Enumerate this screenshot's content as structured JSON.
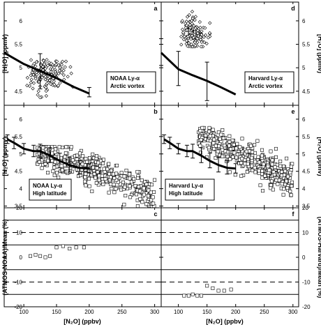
{
  "chart_data": {
    "type": "scatter",
    "shared_x": {
      "label": "[N₂O] (ppbv)",
      "xlim": [
        70,
        310
      ],
      "ticks": [
        100,
        150,
        200,
        250,
        300
      ]
    },
    "panels": [
      {
        "id": "a",
        "label": "a",
        "annotation": [
          "NOAA Ly-α",
          "Arctic vortex"
        ],
        "ylabel": "[H₂O] (ppmv)",
        "ylabel_side": "left",
        "ylim": [
          4.2,
          6.4
        ],
        "yticks": [
          4.5,
          5.0,
          5.5,
          6.0
        ],
        "marker": "diamond",
        "scatter_clusters": [
          {
            "x_range": [
              105,
              175
            ],
            "y_range": [
              4.35,
              5.2
            ],
            "center": [
              135,
              4.85
            ],
            "n": 160
          }
        ],
        "mean_line": {
          "x": [
            70,
            100,
            125,
            150,
            175,
            200
          ],
          "y": [
            5.32,
            5.08,
            4.93,
            4.78,
            4.6,
            4.45
          ],
          "err_x": [
            70,
            125,
            200
          ],
          "err_y": [
            5.32,
            4.93,
            4.45
          ],
          "err_lo": [
            5.05,
            4.55,
            4.38
          ],
          "err_hi": [
            5.62,
            5.3,
            4.58
          ]
        }
      },
      {
        "id": "d",
        "label": "d",
        "annotation": [
          "Harvard Ly-α",
          "Arctic vortex"
        ],
        "ylabel": "[H₂O] (ppmv)",
        "ylabel_side": "right",
        "ylim": [
          4.2,
          6.4
        ],
        "yticks": [
          4.5,
          5.0,
          5.5,
          6.0
        ],
        "marker": "diamond",
        "scatter_clusters": [
          {
            "x_range": [
              105,
              155
            ],
            "y_range": [
              5.45,
              6.2
            ],
            "center": [
              128,
              5.75
            ],
            "n": 160
          }
        ],
        "mean_line": {
          "x": [
            70,
            100,
            125,
            150,
            175,
            200
          ],
          "y": [
            5.32,
            4.97,
            4.84,
            4.72,
            4.58,
            4.43
          ],
          "err_x": [
            70,
            100,
            150
          ],
          "err_y": [
            5.32,
            4.97,
            4.72
          ],
          "err_lo": [
            5.05,
            4.62,
            4.3
          ],
          "err_hi": [
            5.62,
            5.35,
            5.12
          ]
        }
      },
      {
        "id": "b",
        "label": "b",
        "annotation": [
          "NOAA Ly-α",
          "High latitude"
        ],
        "ylabel": "[H₂O] (ppmv)",
        "ylabel_side": "left",
        "ylim": [
          3.45,
          6.4
        ],
        "yticks": [
          3.5,
          4.0,
          4.5,
          5.0,
          5.5,
          6.0
        ],
        "marker": "square",
        "scatter_clusters": [
          {
            "x_range": [
              120,
              300
            ],
            "y_range": [
              3.5,
              5.2
            ],
            "trend": [
              [
                120,
                5.0
              ],
              [
                200,
                4.6
              ],
              [
                300,
                3.85
              ]
            ],
            "n": 420
          }
        ],
        "mean_line": {
          "x": [
            75,
            85,
            100,
            115,
            125,
            140,
            155,
            170,
            185,
            200
          ],
          "y": [
            5.42,
            5.32,
            5.15,
            5.08,
            5.08,
            4.95,
            4.8,
            4.68,
            4.6,
            4.58
          ],
          "err_x": [
            75,
            85,
            100,
            115,
            125,
            140,
            155,
            170,
            185,
            200
          ],
          "err_y": [
            5.42,
            5.32,
            5.15,
            5.08,
            5.08,
            4.95,
            4.8,
            4.68,
            4.6,
            4.58
          ],
          "err_lo": [
            5.3,
            5.15,
            5.0,
            4.92,
            4.88,
            4.75,
            4.6,
            4.48,
            4.42,
            4.45
          ],
          "err_hi": [
            5.55,
            5.48,
            5.3,
            5.25,
            5.28,
            5.18,
            5.02,
            4.9,
            4.8,
            4.72
          ]
        }
      },
      {
        "id": "e",
        "label": "e",
        "annotation": [
          "Harvard Ly-α",
          "High latitude"
        ],
        "ylabel": "[H₂O] (ppmv)",
        "ylabel_side": "right",
        "ylim": [
          3.45,
          6.4
        ],
        "yticks": [
          3.5,
          4.0,
          4.5,
          5.0,
          5.5,
          6.0
        ],
        "marker": "square",
        "scatter_clusters": [
          {
            "x_range": [
              135,
              300
            ],
            "y_range": [
              3.5,
              5.75
            ],
            "trend": [
              [
                135,
                5.5
              ],
              [
                200,
                5.05
              ],
              [
                300,
                4.2
              ]
            ],
            "n": 420
          }
        ],
        "mean_line": {
          "x": [
            75,
            85,
            100,
            115,
            125,
            140,
            155,
            170,
            185,
            200
          ],
          "y": [
            5.42,
            5.32,
            5.15,
            5.08,
            5.08,
            4.95,
            4.8,
            4.68,
            4.6,
            4.58
          ],
          "err_x": [
            75,
            85,
            100,
            115,
            125,
            140,
            155,
            170,
            185,
            200
          ],
          "err_y": [
            5.42,
            5.32,
            5.15,
            5.08,
            5.08,
            4.95,
            4.8,
            4.68,
            4.6,
            4.58
          ],
          "err_lo": [
            5.3,
            5.15,
            5.0,
            4.92,
            4.88,
            4.75,
            4.6,
            4.48,
            4.42,
            4.45
          ],
          "err_hi": [
            5.55,
            5.48,
            5.3,
            5.25,
            5.28,
            5.18,
            5.02,
            4.9,
            4.8,
            4.72
          ]
        }
      },
      {
        "id": "c",
        "label": "c",
        "ylabel": "(ATMOS-NOAA)/Mean (%)",
        "ylabel_side": "left",
        "ylim": [
          -20,
          20
        ],
        "yticks": [
          -20,
          -10,
          0,
          10,
          20
        ],
        "marker": "square",
        "solid_hlines": [
          15,
          5,
          -5,
          -15
        ],
        "dashed_hlines": [
          10,
          -10
        ],
        "points": {
          "x": [
            110,
            118,
            125,
            133,
            140,
            150,
            160,
            170,
            180,
            192
          ],
          "y": [
            0.5,
            1.0,
            0.5,
            0.0,
            0.5,
            4.0,
            4.5,
            3.5,
            4.0,
            4.0
          ]
        }
      },
      {
        "id": "f",
        "label": "f",
        "ylabel": "(ATMOS-Harvard)/Mean (%)",
        "ylabel_side": "right",
        "ylim": [
          -20,
          20
        ],
        "yticks": [
          -20,
          -10,
          0,
          10,
          20
        ],
        "marker": "square",
        "solid_hlines": [
          15,
          5,
          -5,
          -15
        ],
        "dashed_hlines": [
          10,
          -10
        ],
        "points": {
          "x": [
            110,
            118,
            125,
            133,
            140,
            150,
            160,
            170,
            180,
            192
          ],
          "y": [
            -15.5,
            -15.5,
            -15.0,
            -15.5,
            -15.5,
            -11.5,
            -12.5,
            -13.5,
            -13.5,
            -13.0
          ]
        }
      }
    ]
  }
}
